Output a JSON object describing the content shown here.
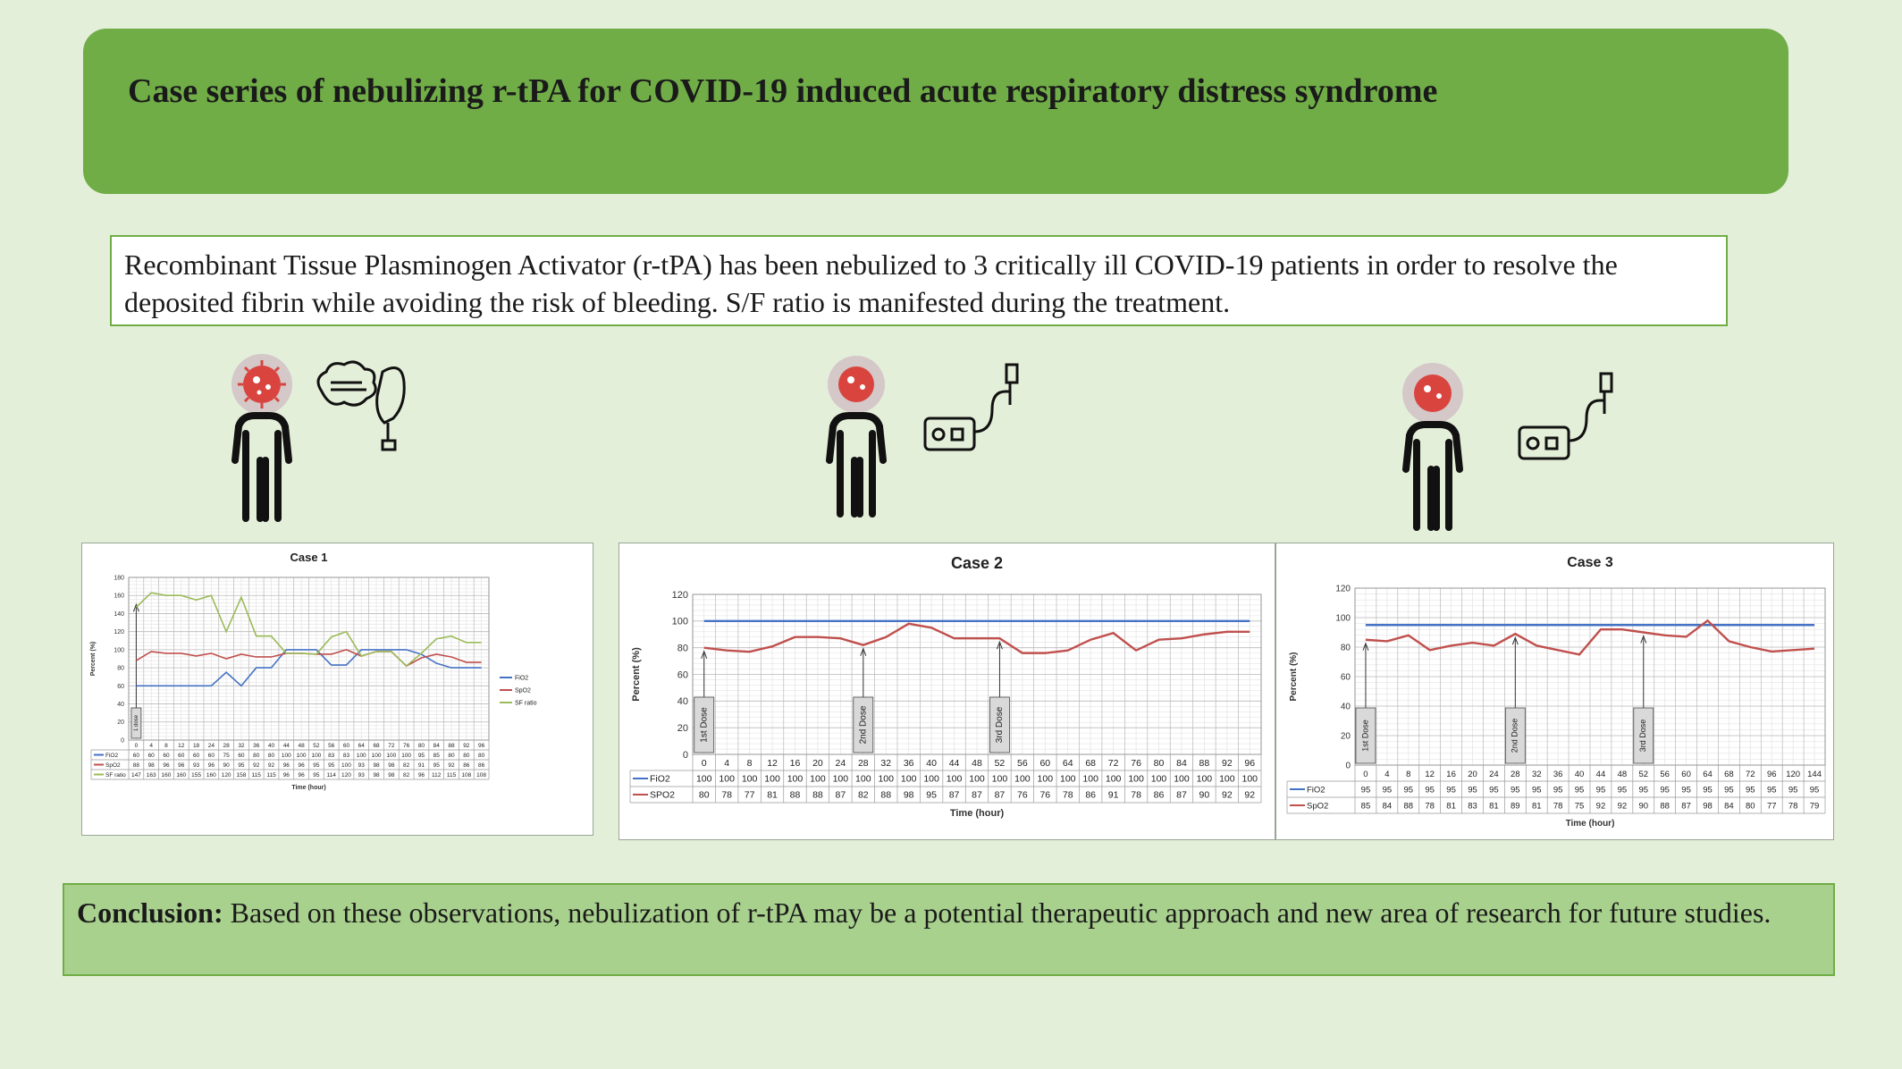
{
  "title": "Case series of nebulizing r-tPA for COVID-19 induced acute respiratory distress syndrome",
  "intro": "Recombinant Tissue Plasminogen Activator (r-tPA) has been nebulized to 3 critically ill COVID-19 patients in order to resolve the deposited fibrin while avoiding the risk of bleeding. S/F ratio is manifested during the treatment.",
  "conclusion": {
    "label": "Conclusion:",
    "text": " Based on these observations, nebulization of r-tPA may be a potential therapeutic approach and new area of research for future studies."
  },
  "colors": {
    "background": "#e4efd9",
    "title_box": "#70ad47",
    "conclusion_box": "#a9d18e",
    "fio2": "#4472c4",
    "spo2": "#c0504d",
    "sf_ratio": "#9bbb59"
  },
  "chart_data": [
    {
      "type": "line",
      "title": "Case 1",
      "xlabel": "Time (hour)",
      "ylabel": "Percent (%)",
      "ylim": [
        0,
        180
      ],
      "yticks": [
        0,
        20,
        40,
        60,
        80,
        100,
        120,
        140,
        160,
        180
      ],
      "grid": true,
      "legend": "right",
      "x": [
        0,
        4,
        8,
        12,
        18,
        24,
        28,
        32,
        36,
        40,
        44,
        48,
        52,
        56,
        60,
        64,
        68,
        72,
        76,
        80,
        84,
        88,
        92,
        96
      ],
      "series": [
        {
          "name": "FiO2",
          "color": "#4472c4",
          "values": [
            60,
            60,
            60,
            60,
            60,
            60,
            75,
            60,
            80,
            80,
            100,
            100,
            100,
            83,
            83,
            100,
            100,
            100,
            100,
            95,
            85,
            80,
            80,
            80
          ]
        },
        {
          "name": "SpO2",
          "color": "#c0504d",
          "values": [
            88,
            98,
            96,
            96,
            93,
            96,
            90,
            95,
            92,
            92,
            96,
            96,
            95,
            95,
            100,
            93,
            98,
            98,
            82,
            91,
            95,
            92,
            86,
            86
          ]
        },
        {
          "name": "SF ratio",
          "color": "#9bbb59",
          "values": [
            147,
            163,
            160,
            160,
            155,
            160,
            120,
            158,
            115,
            115,
            96,
            96,
            95,
            114,
            120,
            93,
            98,
            98,
            82,
            96,
            112,
            115,
            108,
            108
          ]
        }
      ],
      "annotations": [
        {
          "label": "1 dose",
          "x": 0
        }
      ]
    },
    {
      "type": "line",
      "title": "Case 2",
      "xlabel": "Time (hour)",
      "ylabel": "Percent (%)",
      "ylim": [
        0,
        120
      ],
      "yticks": [
        0,
        20,
        40,
        60,
        80,
        100,
        120
      ],
      "grid": true,
      "legend": "table",
      "x": [
        0,
        4,
        8,
        12,
        16,
        20,
        24,
        28,
        32,
        36,
        40,
        44,
        48,
        52,
        56,
        60,
        64,
        68,
        72,
        76,
        80,
        84,
        88,
        92,
        96
      ],
      "series": [
        {
          "name": "FiO2",
          "color": "#4472c4",
          "values": [
            100,
            100,
            100,
            100,
            100,
            100,
            100,
            100,
            100,
            100,
            100,
            100,
            100,
            100,
            100,
            100,
            100,
            100,
            100,
            100,
            100,
            100,
            100,
            100,
            100
          ]
        },
        {
          "name": "SPO2",
          "color": "#c0504d",
          "values": [
            80,
            78,
            77,
            81,
            88,
            88,
            87,
            82,
            88,
            98,
            95,
            87,
            87,
            87,
            76,
            76,
            78,
            86,
            91,
            78,
            86,
            87,
            90,
            92,
            92
          ]
        }
      ],
      "annotations": [
        {
          "label": "1st Dose",
          "x": 0
        },
        {
          "label": "2nd Dose",
          "x": 28
        },
        {
          "label": "3rd Dose",
          "x": 52
        }
      ]
    },
    {
      "type": "line",
      "title": "Case 3",
      "xlabel": "Time (hour)",
      "ylabel": "Percent (%)",
      "ylim": [
        0,
        120
      ],
      "yticks": [
        0,
        20,
        40,
        60,
        80,
        100,
        120
      ],
      "grid": true,
      "legend": "table",
      "x": [
        0,
        4,
        8,
        12,
        16,
        20,
        24,
        28,
        32,
        36,
        40,
        44,
        48,
        52,
        56,
        60,
        64,
        68,
        72,
        96,
        120,
        144
      ],
      "series": [
        {
          "name": "FiO2",
          "color": "#4472c4",
          "values": [
            95,
            95,
            95,
            95,
            95,
            95,
            95,
            95,
            95,
            95,
            95,
            95,
            95,
            95,
            95,
            95,
            95,
            95,
            95,
            95,
            95,
            95
          ]
        },
        {
          "name": "SpO2",
          "color": "#c0504d",
          "values": [
            85,
            84,
            88,
            78,
            81,
            83,
            81,
            89,
            81,
            78,
            75,
            92,
            92,
            90,
            88,
            87,
            98,
            84,
            80,
            77,
            78,
            79
          ]
        }
      ],
      "annotations": [
        {
          "label": "1st Dose",
          "x": 0
        },
        {
          "label": "2nd Dose",
          "x": 28
        },
        {
          "label": "3rd Dose",
          "x": 52
        }
      ]
    }
  ]
}
